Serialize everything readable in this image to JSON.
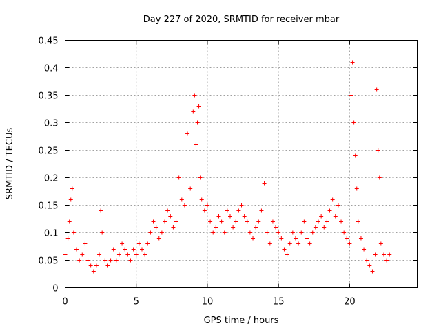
{
  "chart_data": {
    "type": "scatter",
    "title": "Day 227 of 2020, SRMTID for receiver mbar",
    "xlabel": "GPS time / hours",
    "ylabel": "SRMTID / TECUs",
    "xlim": [
      0,
      24.75
    ],
    "ylim": [
      0,
      0.45
    ],
    "x_ticks": [
      0,
      5,
      10,
      15,
      20
    ],
    "y_ticks": [
      0,
      0.05,
      0.1,
      0.15,
      0.2,
      0.25,
      0.3,
      0.35,
      0.4,
      0.45
    ],
    "x_tick_labels": [
      "0",
      "5",
      "10",
      "15",
      "20"
    ],
    "y_tick_labels": [
      "0",
      "0.05",
      "0.1",
      "0.15",
      "0.2",
      "0.25",
      "0.3",
      "0.35",
      "0.4",
      "0.45"
    ],
    "grid": true,
    "marker": "+",
    "marker_color": "#ff0000",
    "series": [
      {
        "name": "SRMTID",
        "x": [
          0.0,
          0.2,
          0.3,
          0.4,
          0.5,
          0.6,
          0.8,
          1.0,
          1.2,
          1.4,
          1.6,
          1.8,
          2.0,
          2.2,
          2.4,
          2.5,
          2.6,
          2.8,
          3.0,
          3.2,
          3.4,
          3.6,
          3.8,
          4.0,
          4.2,
          4.4,
          4.6,
          4.8,
          5.0,
          5.2,
          5.4,
          5.6,
          5.8,
          6.0,
          6.2,
          6.4,
          6.6,
          6.8,
          7.0,
          7.2,
          7.4,
          7.6,
          7.8,
          8.0,
          8.2,
          8.4,
          8.6,
          8.8,
          9.0,
          9.1,
          9.2,
          9.3,
          9.4,
          9.5,
          9.6,
          9.8,
          10.0,
          10.2,
          10.4,
          10.6,
          10.8,
          11.0,
          11.2,
          11.4,
          11.6,
          11.8,
          12.0,
          12.2,
          12.4,
          12.6,
          12.8,
          13.0,
          13.2,
          13.4,
          13.6,
          13.8,
          14.0,
          14.2,
          14.4,
          14.6,
          14.8,
          15.0,
          15.2,
          15.4,
          15.6,
          15.8,
          16.0,
          16.2,
          16.4,
          16.6,
          16.8,
          17.0,
          17.2,
          17.4,
          17.6,
          17.8,
          18.0,
          18.2,
          18.4,
          18.6,
          18.8,
          19.0,
          19.2,
          19.4,
          19.6,
          19.8,
          20.0,
          20.1,
          20.2,
          20.3,
          20.4,
          20.5,
          20.6,
          20.8,
          21.0,
          21.2,
          21.4,
          21.6,
          21.8,
          21.9,
          22.0,
          22.1,
          22.2,
          22.4,
          22.6,
          22.8
        ],
        "y": [
          0.06,
          0.09,
          0.12,
          0.16,
          0.18,
          0.1,
          0.07,
          0.05,
          0.06,
          0.08,
          0.05,
          0.04,
          0.03,
          0.04,
          0.06,
          0.14,
          0.1,
          0.05,
          0.04,
          0.05,
          0.07,
          0.05,
          0.06,
          0.08,
          0.07,
          0.06,
          0.05,
          0.07,
          0.06,
          0.08,
          0.07,
          0.06,
          0.08,
          0.1,
          0.12,
          0.11,
          0.09,
          0.1,
          0.12,
          0.14,
          0.13,
          0.11,
          0.12,
          0.2,
          0.16,
          0.15,
          0.28,
          0.18,
          0.32,
          0.35,
          0.26,
          0.3,
          0.33,
          0.2,
          0.16,
          0.14,
          0.15,
          0.12,
          0.1,
          0.11,
          0.13,
          0.12,
          0.1,
          0.14,
          0.13,
          0.11,
          0.12,
          0.14,
          0.15,
          0.13,
          0.12,
          0.1,
          0.09,
          0.11,
          0.12,
          0.14,
          0.19,
          0.1,
          0.08,
          0.12,
          0.11,
          0.1,
          0.09,
          0.07,
          0.06,
          0.08,
          0.1,
          0.09,
          0.08,
          0.1,
          0.12,
          0.09,
          0.08,
          0.1,
          0.11,
          0.12,
          0.13,
          0.11,
          0.12,
          0.14,
          0.16,
          0.13,
          0.15,
          0.12,
          0.1,
          0.09,
          0.08,
          0.35,
          0.41,
          0.3,
          0.24,
          0.18,
          0.12,
          0.09,
          0.07,
          0.05,
          0.04,
          0.03,
          0.06,
          0.36,
          0.25,
          0.2,
          0.08,
          0.06,
          0.05,
          0.06
        ]
      }
    ]
  }
}
